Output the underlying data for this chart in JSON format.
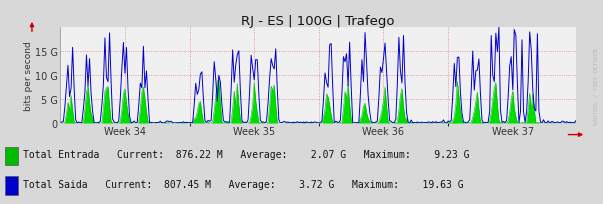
{
  "title": "RJ - ES | 100G | Trafego",
  "ylabel": "bits per second",
  "watermark": "RRDTOOL / TOBI OETIKER",
  "background_color": "#d8d8d8",
  "plot_bg_color": "#f0f0f0",
  "grid_color": "#e08080",
  "entrada_color": "#00bb00",
  "saida_color": "#0000cc",
  "entrada_fill": "#00dd00",
  "weeks": [
    "Week 34",
    "Week 35",
    "Week 36",
    "Week 37"
  ],
  "ylim_max": 20000000000,
  "yticks": [
    0,
    5000000000,
    10000000000,
    15000000000
  ],
  "ytick_labels": [
    "0",
    "5 G",
    "10 G",
    "15 G"
  ],
  "legend": [
    {
      "label": "Total Entrada",
      "color": "#00cc00",
      "current": "876.22 M",
      "average": "2.07 G",
      "maximum": "9.23 G"
    },
    {
      "label": "Total Saida",
      "color": "#0000cc",
      "current": "807.45 M",
      "average": "3.72 G",
      "maximum": "19.63 G"
    }
  ],
  "n_points": 336,
  "arrow_color": "#cc0000"
}
